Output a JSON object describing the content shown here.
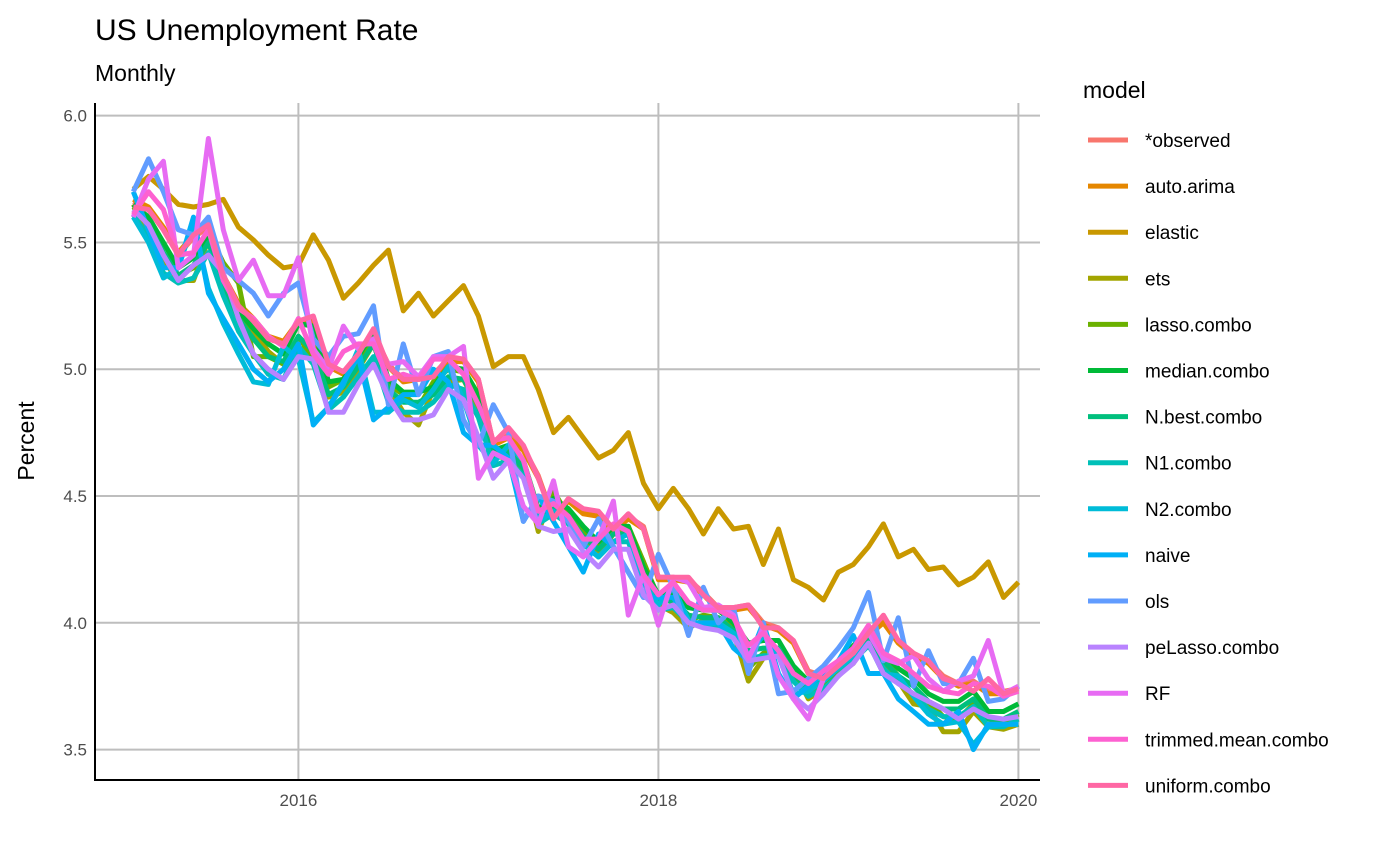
{
  "chart_data": {
    "type": "line",
    "title": "US Unemployment Rate",
    "subtitle": "Monthly",
    "ylabel": "Percent",
    "xlabel": "",
    "xlim": [
      2014.87,
      2020.12
    ],
    "ylim": [
      3.38,
      6.05
    ],
    "x_ticks": [
      2016,
      2018,
      2020
    ],
    "x_tick_labels": [
      "2016",
      "2018",
      "2020"
    ],
    "y_ticks": [
      3.5,
      4.0,
      4.5,
      5.0,
      5.5,
      6.0
    ],
    "y_tick_labels": [
      "3.5",
      "4.0",
      "4.5",
      "5.0",
      "5.5",
      "6.0"
    ],
    "grid": true,
    "legend": {
      "title": "model",
      "position": "right"
    },
    "x": [
      2015.083,
      2015.167,
      2015.25,
      2015.333,
      2015.417,
      2015.5,
      2015.583,
      2015.667,
      2015.75,
      2015.833,
      2015.917,
      2016.0,
      2016.083,
      2016.167,
      2016.25,
      2016.333,
      2016.417,
      2016.5,
      2016.583,
      2016.667,
      2016.75,
      2016.833,
      2016.917,
      2017.0,
      2017.083,
      2017.167,
      2017.25,
      2017.333,
      2017.417,
      2017.5,
      2017.583,
      2017.667,
      2017.75,
      2017.833,
      2017.917,
      2018.0,
      2018.083,
      2018.167,
      2018.25,
      2018.333,
      2018.417,
      2018.5,
      2018.583,
      2018.667,
      2018.75,
      2018.833,
      2018.917,
      2019.0,
      2019.083,
      2019.167,
      2019.25,
      2019.333,
      2019.417,
      2019.5,
      2019.583,
      2019.667,
      2019.75,
      2019.833,
      2019.917,
      2020.0
    ],
    "series": [
      {
        "name": "*observed",
        "color": "#F8766D",
        "values": [
          5.66,
          5.63,
          5.55,
          5.45,
          5.52,
          5.56,
          5.36,
          5.25,
          5.19,
          5.12,
          5.1,
          5.18,
          5.2,
          5.02,
          4.99,
          5.06,
          5.14,
          5.02,
          4.96,
          4.97,
          4.98,
          5.04,
          5.04,
          4.96,
          4.71,
          4.74,
          4.69,
          4.58,
          4.41,
          4.49,
          4.44,
          4.43,
          4.37,
          4.42,
          4.38,
          4.18,
          4.18,
          4.17,
          4.12,
          4.06,
          4.06,
          4.07,
          4.0,
          3.98,
          3.93,
          3.81,
          3.79,
          3.82,
          3.89,
          3.96,
          4.01,
          3.93,
          3.88,
          3.85,
          3.79,
          3.76,
          3.77,
          3.73,
          3.73,
          3.74
        ]
      },
      {
        "name": "auto.arima",
        "color": "#E58700",
        "values": [
          5.67,
          5.64,
          5.56,
          5.46,
          5.53,
          5.57,
          5.37,
          5.26,
          5.2,
          5.13,
          5.11,
          5.19,
          5.19,
          5.01,
          4.98,
          5.05,
          5.13,
          5.01,
          4.95,
          4.96,
          4.97,
          5.03,
          5.03,
          4.95,
          4.7,
          4.73,
          4.68,
          4.57,
          4.42,
          4.48,
          4.43,
          4.42,
          4.36,
          4.41,
          4.37,
          4.17,
          4.17,
          4.16,
          4.11,
          4.05,
          4.05,
          4.06,
          3.99,
          3.97,
          3.92,
          3.8,
          3.78,
          3.81,
          3.88,
          3.95,
          4.0,
          3.92,
          3.87,
          3.84,
          3.78,
          3.75,
          3.76,
          3.72,
          3.72,
          3.73
        ]
      },
      {
        "name": "elastic",
        "color": "#C99800",
        "values": [
          5.71,
          5.76,
          5.71,
          5.65,
          5.64,
          5.65,
          5.67,
          5.56,
          5.51,
          5.45,
          5.4,
          5.41,
          5.53,
          5.43,
          5.28,
          5.34,
          5.41,
          5.47,
          5.23,
          5.3,
          5.21,
          5.27,
          5.33,
          5.21,
          5.01,
          5.05,
          5.05,
          4.92,
          4.75,
          4.81,
          4.73,
          4.65,
          4.68,
          4.75,
          4.55,
          4.45,
          4.53,
          4.45,
          4.35,
          4.45,
          4.37,
          4.38,
          4.23,
          4.37,
          4.17,
          4.14,
          4.09,
          4.2,
          4.23,
          4.3,
          4.39,
          4.26,
          4.29,
          4.21,
          4.22,
          4.15,
          4.18,
          4.24,
          4.1,
          4.16
        ]
      },
      {
        "name": "ets",
        "color": "#A3A500",
        "values": [
          5.65,
          5.55,
          5.43,
          5.35,
          5.35,
          5.51,
          5.35,
          5.2,
          5.15,
          5.07,
          5.02,
          5.07,
          5.11,
          4.89,
          4.91,
          5.0,
          5.1,
          4.93,
          4.83,
          4.78,
          4.92,
          4.95,
          4.96,
          4.84,
          4.68,
          4.63,
          4.6,
          4.36,
          4.51,
          4.4,
          4.33,
          4.27,
          4.35,
          4.38,
          4.24,
          4.07,
          4.04,
          3.98,
          4.01,
          4.01,
          3.96,
          3.77,
          3.86,
          3.89,
          3.82,
          3.7,
          3.74,
          3.8,
          3.84,
          3.93,
          3.83,
          3.77,
          3.68,
          3.67,
          3.57,
          3.57,
          3.65,
          3.59,
          3.58,
          3.6
        ]
      },
      {
        "name": "lasso.combo",
        "color": "#6BB100",
        "values": [
          5.64,
          5.58,
          5.46,
          5.37,
          5.4,
          5.54,
          5.42,
          5.34,
          5.05,
          5.05,
          5.02,
          5.13,
          5.04,
          4.93,
          4.96,
          5.02,
          5.12,
          4.94,
          4.9,
          4.85,
          4.95,
          5.0,
          4.99,
          4.88,
          4.66,
          4.68,
          4.62,
          4.41,
          4.52,
          4.42,
          4.36,
          4.31,
          4.38,
          4.38,
          4.24,
          4.1,
          4.08,
          4.01,
          4.03,
          4.02,
          3.98,
          3.82,
          3.88,
          3.9,
          3.79,
          3.72,
          3.76,
          3.82,
          3.87,
          3.95,
          3.86,
          3.79,
          3.71,
          3.69,
          3.63,
          3.62,
          3.68,
          3.62,
          3.61,
          3.64
        ]
      },
      {
        "name": "median.combo",
        "color": "#00BA38",
        "values": [
          5.65,
          5.6,
          5.5,
          5.4,
          5.44,
          5.53,
          5.36,
          5.23,
          5.16,
          5.1,
          5.06,
          5.18,
          5.17,
          4.95,
          4.96,
          5.05,
          5.15,
          4.96,
          4.91,
          4.91,
          4.93,
          5.01,
          5.0,
          4.9,
          4.68,
          4.7,
          4.64,
          4.45,
          4.49,
          4.45,
          4.38,
          4.32,
          4.38,
          4.38,
          4.22,
          4.11,
          4.12,
          4.06,
          4.05,
          4.05,
          4.0,
          3.92,
          3.93,
          3.93,
          3.83,
          3.77,
          3.8,
          3.85,
          3.91,
          3.97,
          3.88,
          3.82,
          3.78,
          3.72,
          3.69,
          3.69,
          3.73,
          3.65,
          3.65,
          3.68
        ]
      },
      {
        "name": "N.best.combo",
        "color": "#00BF7D",
        "values": [
          5.63,
          5.57,
          5.46,
          5.37,
          5.41,
          5.5,
          5.33,
          5.2,
          5.12,
          5.05,
          5.03,
          5.13,
          5.07,
          4.9,
          4.93,
          5.01,
          5.1,
          4.92,
          4.87,
          4.87,
          4.9,
          4.97,
          4.96,
          4.86,
          4.65,
          4.67,
          4.61,
          4.42,
          4.46,
          4.42,
          4.34,
          4.29,
          4.35,
          4.35,
          4.19,
          4.08,
          4.09,
          4.03,
          4.02,
          4.02,
          3.97,
          3.89,
          3.9,
          3.9,
          3.8,
          3.74,
          3.77,
          3.82,
          3.88,
          3.94,
          3.85,
          3.79,
          3.75,
          3.69,
          3.66,
          3.66,
          3.7,
          3.62,
          3.62,
          3.65
        ]
      },
      {
        "name": "N1.combo",
        "color": "#00C0B8",
        "values": [
          5.61,
          5.52,
          5.38,
          5.34,
          5.36,
          5.46,
          5.29,
          5.15,
          5.06,
          4.98,
          4.96,
          5.09,
          5.02,
          4.84,
          4.89,
          4.97,
          5.05,
          4.87,
          4.83,
          4.83,
          4.87,
          4.94,
          4.92,
          4.81,
          4.62,
          4.64,
          4.58,
          4.39,
          4.43,
          4.39,
          4.31,
          4.26,
          4.32,
          4.32,
          4.16,
          4.05,
          4.06,
          4.0,
          3.99,
          3.99,
          3.94,
          3.86,
          3.87,
          3.87,
          3.77,
          3.71,
          3.74,
          3.79,
          3.85,
          3.91,
          3.82,
          3.76,
          3.72,
          3.66,
          3.63,
          3.63,
          3.67,
          3.59,
          3.59,
          3.62
        ]
      },
      {
        "name": "N2.combo",
        "color": "#00BCD8",
        "values": [
          5.6,
          5.5,
          5.36,
          5.4,
          5.58,
          5.32,
          5.18,
          5.06,
          4.95,
          4.94,
          5.09,
          5.04,
          4.79,
          4.85,
          4.94,
          5.08,
          4.83,
          4.83,
          4.88,
          4.85,
          4.92,
          5.01,
          4.88,
          4.7,
          4.63,
          4.7,
          4.64,
          4.4,
          4.44,
          4.4,
          4.31,
          4.26,
          4.32,
          4.35,
          4.16,
          4.07,
          4.14,
          4.01,
          3.99,
          4.0,
          3.96,
          3.87,
          3.95,
          3.87,
          3.72,
          3.73,
          3.77,
          3.82,
          3.87,
          3.92,
          3.8,
          3.79,
          3.71,
          3.64,
          3.6,
          3.61,
          3.52,
          3.59,
          3.6,
          3.6
        ]
      },
      {
        "name": "naive",
        "color": "#00B0F6",
        "values": [
          5.7,
          5.55,
          5.4,
          5.4,
          5.6,
          5.3,
          5.2,
          5.1,
          5.0,
          4.95,
          5.0,
          5.1,
          4.78,
          4.85,
          4.95,
          5.05,
          4.8,
          4.85,
          4.9,
          4.9,
          5.0,
          4.95,
          4.75,
          4.7,
          4.7,
          4.65,
          4.4,
          4.5,
          4.4,
          4.3,
          4.2,
          4.35,
          4.3,
          4.2,
          4.1,
          4.1,
          4.1,
          4.0,
          4.0,
          4.0,
          3.9,
          3.85,
          4.0,
          3.8,
          3.7,
          3.75,
          3.8,
          3.85,
          3.95,
          3.8,
          3.8,
          3.7,
          3.65,
          3.6,
          3.6,
          3.65,
          3.5,
          3.6,
          3.6,
          3.6
        ]
      },
      {
        "name": "ols",
        "color": "#619CFF",
        "values": [
          5.7,
          5.83,
          5.7,
          5.55,
          5.53,
          5.6,
          5.4,
          5.35,
          5.3,
          5.21,
          5.3,
          5.34,
          5.12,
          5.05,
          5.13,
          5.14,
          5.25,
          4.86,
          5.1,
          4.9,
          5.05,
          5.07,
          4.8,
          4.7,
          4.86,
          4.75,
          4.4,
          4.5,
          4.48,
          4.4,
          4.3,
          4.41,
          4.3,
          4.2,
          4.1,
          4.27,
          4.14,
          3.95,
          4.14,
          4.0,
          4.06,
          3.8,
          4.0,
          3.72,
          3.73,
          3.78,
          3.83,
          3.9,
          3.98,
          4.12,
          3.85,
          4.02,
          3.75,
          3.89,
          3.76,
          3.76,
          3.86,
          3.69,
          3.7,
          3.75
        ]
      },
      {
        "name": "peLasso.combo",
        "color": "#B983FF",
        "values": [
          5.63,
          5.57,
          5.45,
          5.35,
          5.41,
          5.45,
          5.38,
          5.2,
          5.06,
          5.0,
          4.96,
          5.05,
          5.04,
          4.83,
          4.83,
          4.94,
          5.02,
          4.89,
          4.8,
          4.8,
          4.82,
          4.92,
          4.88,
          4.73,
          4.57,
          4.64,
          4.57,
          4.38,
          4.36,
          4.37,
          4.28,
          4.22,
          4.29,
          4.29,
          4.11,
          4.05,
          4.07,
          4.0,
          3.98,
          3.97,
          3.94,
          3.85,
          3.86,
          3.87,
          3.71,
          3.66,
          3.72,
          3.79,
          3.84,
          3.92,
          3.8,
          3.76,
          3.72,
          3.69,
          3.66,
          3.62,
          3.66,
          3.63,
          3.62,
          3.63
        ]
      },
      {
        "name": "RF",
        "color": "#E76BF3",
        "values": [
          5.6,
          5.75,
          5.82,
          5.4,
          5.45,
          5.91,
          5.55,
          5.35,
          5.43,
          5.29,
          5.29,
          5.44,
          5.08,
          5.0,
          5.17,
          5.08,
          5.12,
          5.02,
          5.03,
          4.97,
          5.05,
          5.05,
          5.09,
          4.57,
          4.67,
          4.64,
          4.46,
          4.39,
          4.56,
          4.3,
          4.26,
          4.33,
          4.48,
          4.03,
          4.19,
          3.99,
          4.18,
          4.16,
          4.06,
          4.07,
          4.03,
          3.86,
          3.98,
          3.79,
          3.7,
          3.62,
          3.78,
          3.84,
          3.88,
          3.96,
          3.86,
          3.84,
          3.87,
          3.78,
          3.73,
          3.77,
          3.79,
          3.93,
          3.72,
          3.75
        ]
      },
      {
        "name": "trimmed.mean.combo",
        "color": "#FD61D1",
        "values": [
          5.61,
          5.7,
          5.63,
          5.45,
          5.46,
          5.55,
          5.35,
          5.24,
          5.2,
          5.13,
          5.09,
          5.2,
          5.06,
          4.98,
          5.07,
          5.1,
          5.1,
          4.96,
          4.98,
          4.96,
          5.04,
          5.04,
          4.98,
          4.86,
          4.72,
          4.73,
          4.64,
          4.44,
          4.47,
          4.42,
          4.33,
          4.33,
          4.39,
          4.36,
          4.19,
          4.11,
          4.16,
          4.08,
          4.05,
          4.05,
          4.02,
          3.91,
          3.96,
          3.89,
          3.8,
          3.76,
          3.81,
          3.85,
          3.9,
          3.99,
          3.88,
          3.85,
          3.8,
          3.75,
          3.73,
          3.72,
          3.76,
          3.75,
          3.71,
          3.73
        ]
      },
      {
        "name": "uniform.combo",
        "color": "#FF67A4",
        "values": [
          5.64,
          5.63,
          5.55,
          5.45,
          5.53,
          5.57,
          5.37,
          5.25,
          5.19,
          5.12,
          5.1,
          5.19,
          5.21,
          5.02,
          4.99,
          5.06,
          5.16,
          5.01,
          4.96,
          4.96,
          4.97,
          5.05,
          5.04,
          4.96,
          4.71,
          4.77,
          4.7,
          4.57,
          4.41,
          4.49,
          4.45,
          4.44,
          4.37,
          4.43,
          4.37,
          4.18,
          4.18,
          4.18,
          4.11,
          4.06,
          4.06,
          4.07,
          3.98,
          3.98,
          3.93,
          3.8,
          3.78,
          3.83,
          3.88,
          3.96,
          4.03,
          3.93,
          3.88,
          3.85,
          3.78,
          3.76,
          3.73,
          3.78,
          3.72,
          3.74
        ]
      }
    ]
  }
}
